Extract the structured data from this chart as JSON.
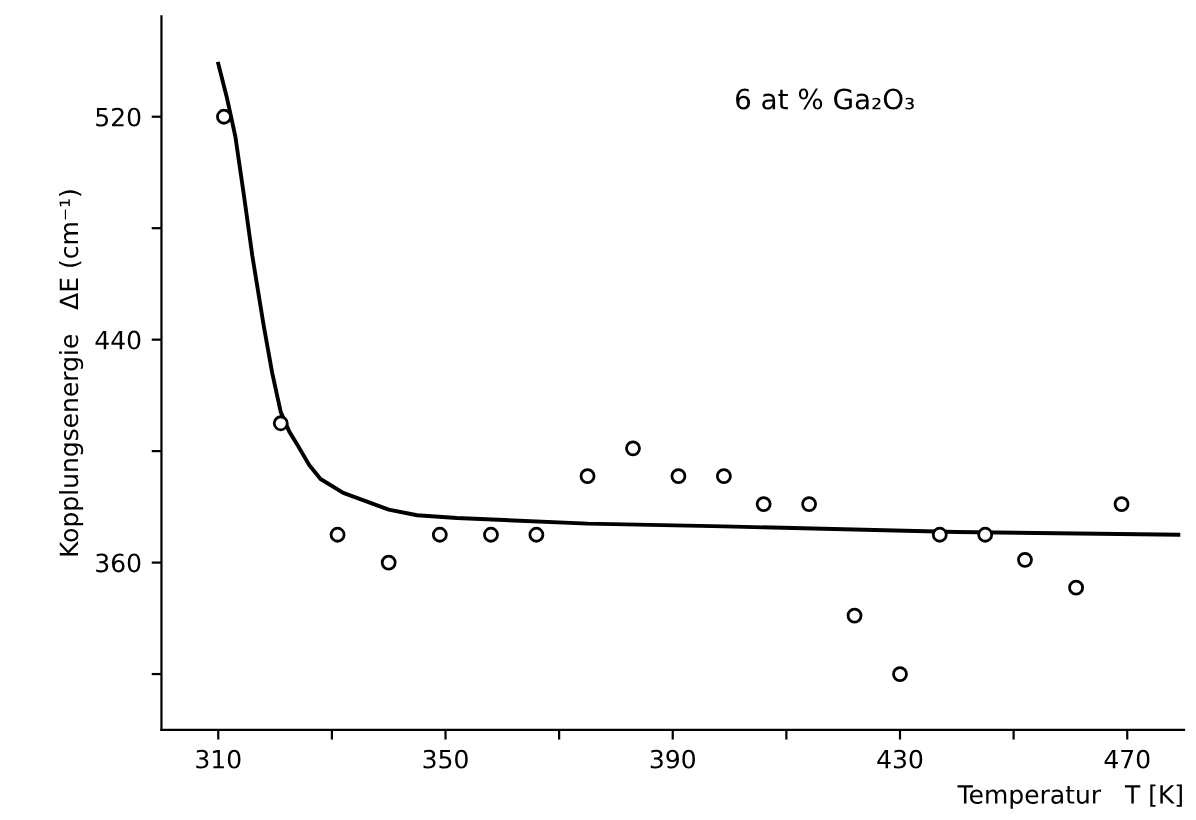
{
  "chart_data": {
    "type": "scatter",
    "xlabel": "Temperatur   T [K]",
    "ylabel": "Kopplungsenergie   ΔE (cm⁻¹)",
    "annotations": [
      "6 at % Ga₂O₃"
    ],
    "xlim": [
      300,
      480
    ],
    "ylim": [
      300,
      556
    ],
    "xticks": [
      310,
      {
        "value": 330,
        "label": null
      },
      350,
      {
        "value": 370,
        "label": null
      },
      390,
      {
        "value": 410,
        "label": null
      },
      430,
      {
        "value": 450,
        "label": null
      },
      470
    ],
    "yticks": [
      {
        "value": 320,
        "label": null
      },
      360,
      {
        "value": 400,
        "label": null
      },
      440,
      {
        "value": 480,
        "label": null
      },
      520
    ],
    "grid": false,
    "legend": false,
    "series": [
      {
        "marker": "circle",
        "color": "#000000",
        "x": [
          311,
          321,
          331,
          340,
          349,
          358,
          366,
          375,
          383,
          391,
          399,
          406,
          414,
          422,
          430,
          437,
          445,
          452,
          461,
          469
        ],
        "values": [
          520,
          410,
          370,
          360,
          370,
          370,
          370,
          391,
          401,
          391,
          391,
          381,
          381,
          341,
          320,
          370,
          370,
          361,
          351,
          381
        ]
      },
      {
        "type": "line",
        "marker": "none",
        "line_style": "solid",
        "color": "#000000",
        "x": [
          310,
          311.5,
          313,
          314.5,
          316,
          318,
          319.5,
          321,
          322.5,
          324,
          326,
          328,
          332,
          340,
          345,
          352,
          375,
          399,
          440,
          479
        ],
        "values": [
          539,
          527,
          513,
          492,
          470,
          445,
          428,
          414,
          407,
          402,
          395,
          390,
          385,
          379,
          377,
          376,
          374,
          373,
          371,
          370
        ]
      }
    ]
  }
}
